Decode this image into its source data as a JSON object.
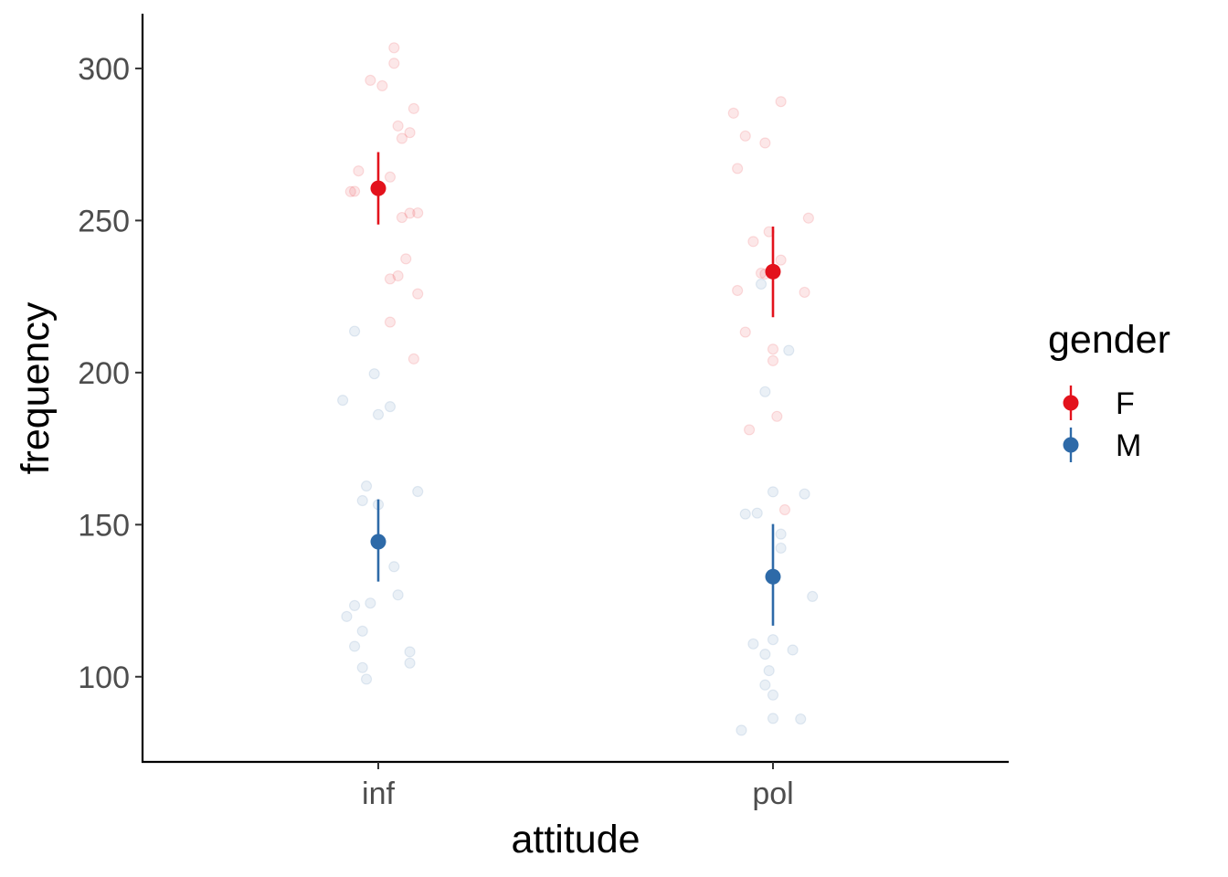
{
  "chart_data": {
    "type": "scatter",
    "title": "",
    "xlabel": "attitude",
    "ylabel": "frequency",
    "categories": [
      "inf",
      "pol"
    ],
    "yticks": [
      100,
      150,
      200,
      250,
      300
    ],
    "ylim": [
      72,
      318
    ],
    "grid": false,
    "legend": {
      "title": "gender",
      "position": "right",
      "entries": [
        "F",
        "M"
      ]
    },
    "colors": {
      "F": "#e3121c",
      "M": "#2e6aa8"
    },
    "series": [
      {
        "name": "F",
        "summary": [
          {
            "category": "inf",
            "mean": 260.6,
            "lower": 248.7,
            "upper": 272.5
          },
          {
            "category": "pol",
            "mean": 233.2,
            "lower": 218.2,
            "upper": 248.0
          }
        ],
        "points": [
          {
            "category": "inf",
            "jitter": 0.04,
            "value": 306.8
          },
          {
            "category": "inf",
            "jitter": 0.04,
            "value": 301.7
          },
          {
            "category": "inf",
            "jitter": -0.02,
            "value": 296.1
          },
          {
            "category": "inf",
            "jitter": 0.01,
            "value": 294.3
          },
          {
            "category": "inf",
            "jitter": 0.09,
            "value": 286.8
          },
          {
            "category": "inf",
            "jitter": 0.05,
            "value": 281.1
          },
          {
            "category": "inf",
            "jitter": 0.08,
            "value": 278.9
          },
          {
            "category": "inf",
            "jitter": 0.06,
            "value": 277.0
          },
          {
            "category": "inf",
            "jitter": -0.05,
            "value": 266.3
          },
          {
            "category": "inf",
            "jitter": 0.03,
            "value": 264.3
          },
          {
            "category": "inf",
            "jitter": -0.06,
            "value": 259.6
          },
          {
            "category": "inf",
            "jitter": -0.07,
            "value": 259.5
          },
          {
            "category": "inf",
            "jitter": 0.1,
            "value": 252.5
          },
          {
            "category": "inf",
            "jitter": 0.08,
            "value": 252.4
          },
          {
            "category": "inf",
            "jitter": 0.06,
            "value": 251.0
          },
          {
            "category": "inf",
            "jitter": 0.07,
            "value": 237.4
          },
          {
            "category": "inf",
            "jitter": 0.05,
            "value": 231.8
          },
          {
            "category": "inf",
            "jitter": 0.03,
            "value": 230.8
          },
          {
            "category": "inf",
            "jitter": 0.1,
            "value": 225.9
          },
          {
            "category": "inf",
            "jitter": 0.03,
            "value": 216.6
          },
          {
            "category": "inf",
            "jitter": 0.09,
            "value": 204.5
          },
          {
            "category": "pol",
            "jitter": 0.02,
            "value": 289.1
          },
          {
            "category": "pol",
            "jitter": -0.1,
            "value": 285.3
          },
          {
            "category": "pol",
            "jitter": -0.07,
            "value": 277.8
          },
          {
            "category": "pol",
            "jitter": -0.02,
            "value": 275.5
          },
          {
            "category": "pol",
            "jitter": -0.09,
            "value": 267.1
          },
          {
            "category": "pol",
            "jitter": 0.09,
            "value": 250.8
          },
          {
            "category": "pol",
            "jitter": -0.01,
            "value": 246.3
          },
          {
            "category": "pol",
            "jitter": -0.05,
            "value": 243.1
          },
          {
            "category": "pol",
            "jitter": 0.02,
            "value": 237.0
          },
          {
            "category": "pol",
            "jitter": -0.03,
            "value": 232.7
          },
          {
            "category": "pol",
            "jitter": -0.02,
            "value": 232.4
          },
          {
            "category": "pol",
            "jitter": -0.09,
            "value": 227.0
          },
          {
            "category": "pol",
            "jitter": 0.08,
            "value": 226.4
          },
          {
            "category": "pol",
            "jitter": -0.07,
            "value": 213.3
          },
          {
            "category": "pol",
            "jitter": 0.0,
            "value": 207.7
          },
          {
            "category": "pol",
            "jitter": 0.0,
            "value": 203.9
          },
          {
            "category": "pol",
            "jitter": 0.01,
            "value": 185.6
          },
          {
            "category": "pol",
            "jitter": -0.06,
            "value": 181.2
          },
          {
            "category": "pol",
            "jitter": 0.03,
            "value": 154.9
          }
        ]
      },
      {
        "name": "M",
        "summary": [
          {
            "category": "inf",
            "mean": 144.4,
            "lower": 131.3,
            "upper": 158.3
          },
          {
            "category": "pol",
            "mean": 132.9,
            "lower": 116.8,
            "upper": 150.2
          }
        ],
        "points": [
          {
            "category": "inf",
            "jitter": -0.06,
            "value": 213.6
          },
          {
            "category": "inf",
            "jitter": -0.01,
            "value": 199.6
          },
          {
            "category": "inf",
            "jitter": -0.09,
            "value": 190.9
          },
          {
            "category": "inf",
            "jitter": 0.03,
            "value": 188.8
          },
          {
            "category": "inf",
            "jitter": 0.0,
            "value": 186.2
          },
          {
            "category": "inf",
            "jitter": -0.03,
            "value": 162.7
          },
          {
            "category": "inf",
            "jitter": 0.1,
            "value": 160.9
          },
          {
            "category": "inf",
            "jitter": -0.04,
            "value": 157.9
          },
          {
            "category": "inf",
            "jitter": 0.0,
            "value": 156.6
          },
          {
            "category": "inf",
            "jitter": 0.04,
            "value": 136.2
          },
          {
            "category": "inf",
            "jitter": 0.05,
            "value": 126.9
          },
          {
            "category": "inf",
            "jitter": -0.02,
            "value": 124.2
          },
          {
            "category": "inf",
            "jitter": -0.06,
            "value": 123.4
          },
          {
            "category": "inf",
            "jitter": -0.08,
            "value": 119.8
          },
          {
            "category": "inf",
            "jitter": -0.04,
            "value": 115.0
          },
          {
            "category": "inf",
            "jitter": -0.06,
            "value": 110.0
          },
          {
            "category": "inf",
            "jitter": 0.08,
            "value": 108.2
          },
          {
            "category": "inf",
            "jitter": 0.08,
            "value": 104.5
          },
          {
            "category": "inf",
            "jitter": -0.04,
            "value": 103.0
          },
          {
            "category": "inf",
            "jitter": -0.03,
            "value": 99.2
          },
          {
            "category": "pol",
            "jitter": -0.03,
            "value": 229.1
          },
          {
            "category": "pol",
            "jitter": 0.04,
            "value": 207.3
          },
          {
            "category": "pol",
            "jitter": -0.02,
            "value": 193.7
          },
          {
            "category": "pol",
            "jitter": 0.0,
            "value": 160.8
          },
          {
            "category": "pol",
            "jitter": 0.08,
            "value": 160.1
          },
          {
            "category": "pol",
            "jitter": -0.04,
            "value": 153.8
          },
          {
            "category": "pol",
            "jitter": -0.07,
            "value": 153.5
          },
          {
            "category": "pol",
            "jitter": 0.02,
            "value": 146.9
          },
          {
            "category": "pol",
            "jitter": 0.02,
            "value": 142.3
          },
          {
            "category": "pol",
            "jitter": 0.1,
            "value": 126.4
          },
          {
            "category": "pol",
            "jitter": 0.0,
            "value": 112.2
          },
          {
            "category": "pol",
            "jitter": -0.05,
            "value": 110.8
          },
          {
            "category": "pol",
            "jitter": 0.05,
            "value": 108.8
          },
          {
            "category": "pol",
            "jitter": -0.02,
            "value": 107.4
          },
          {
            "category": "pol",
            "jitter": -0.01,
            "value": 102.0
          },
          {
            "category": "pol",
            "jitter": -0.02,
            "value": 97.3
          },
          {
            "category": "pol",
            "jitter": 0.0,
            "value": 94.0
          },
          {
            "category": "pol",
            "jitter": 0.0,
            "value": 86.3
          },
          {
            "category": "pol",
            "jitter": 0.07,
            "value": 86.1
          },
          {
            "category": "pol",
            "jitter": -0.08,
            "value": 82.4
          }
        ]
      }
    ]
  }
}
